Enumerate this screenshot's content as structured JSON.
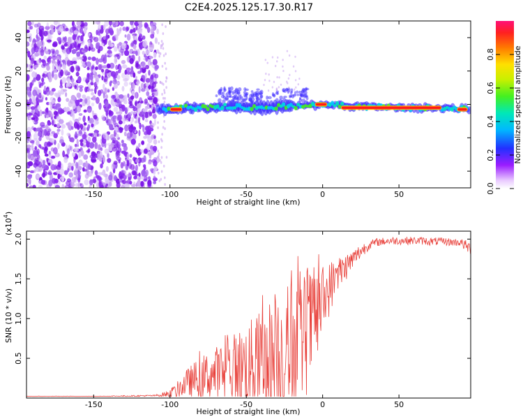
{
  "title": "C2E4.2025.125.17.30.R17",
  "colors": {
    "snr_line": "#e8403a",
    "frame": "#000000",
    "scatter_purple": "#7b16e6",
    "scatter_light": "#c9a2f2"
  },
  "chart_data": [
    {
      "type": "heatmap",
      "name": "spectrogram",
      "xlabel": "Height of straight line (km)",
      "ylabel": "Frequency (Hz)",
      "xlim": [
        -194,
        97
      ],
      "ylim": [
        -50,
        50
      ],
      "x_ticks": [
        -150,
        -100,
        -50,
        0,
        50
      ],
      "x_tick_labels": [
        "-150",
        "-100",
        "-50",
        "0",
        "50"
      ],
      "y_ticks": [
        -40,
        -20,
        0,
        20,
        40
      ],
      "y_tick_labels": [
        "-40",
        "-20",
        "0",
        "20",
        "40"
      ],
      "noise_region_x": [
        -194,
        -108
      ],
      "echo_trace": [
        {
          "x": -108,
          "y": -3
        },
        {
          "x": -100,
          "y": -3
        },
        {
          "x": -90,
          "y": -2
        },
        {
          "x": -75,
          "y": -2
        },
        {
          "x": -60,
          "y": -1
        },
        {
          "x": -45,
          "y": -2
        },
        {
          "x": -35,
          "y": -2
        },
        {
          "x": -25,
          "y": -1
        },
        {
          "x": -15,
          "y": -1
        },
        {
          "x": 0,
          "y": 0
        },
        {
          "x": 20,
          "y": -1
        },
        {
          "x": 50,
          "y": -2
        },
        {
          "x": 80,
          "y": -2
        },
        {
          "x": 97,
          "y": -3
        }
      ],
      "strong_segments": [
        {
          "x0": -100,
          "x1": -92,
          "y": -3
        },
        {
          "x0": -5,
          "x1": 3,
          "y": 0
        },
        {
          "x0": 12,
          "x1": 78,
          "y": -2
        },
        {
          "x0": 88,
          "x1": 95,
          "y": -3
        }
      ],
      "colorbar": {
        "label": "Normalized spectral amplitude",
        "range": [
          0,
          1
        ],
        "ticks": [
          0.0,
          0.2,
          0.4,
          0.6,
          0.8
        ],
        "tick_labels": [
          "0.0",
          "0.2",
          "0.4",
          "0.6",
          "0.8"
        ]
      }
    },
    {
      "type": "line",
      "name": "snr",
      "xlabel": "Height of straight line (km)",
      "ylabel": "SNR (10 * v/v)",
      "y_scale_label": "(x10^4)",
      "y_scale_base": "(x10",
      "y_scale_exp": "4",
      "y_scale_close": ")",
      "xlim": [
        -194,
        97
      ],
      "ylim": [
        0,
        2.1
      ],
      "x_ticks": [
        -150,
        -100,
        -50,
        0,
        50
      ],
      "x_tick_labels": [
        "-150",
        "-100",
        "-50",
        "0",
        "50"
      ],
      "y_ticks": [
        0.5,
        1.0,
        1.5,
        2.0
      ],
      "y_tick_labels": [
        "0.5",
        "1.0",
        "1.5",
        "2.0"
      ],
      "series": [
        {
          "name": "SNR",
          "x": [
            -194,
            -150,
            -110,
            -100,
            -95,
            -90,
            -85,
            -80,
            -75,
            -70,
            -65,
            -60,
            -55,
            -50,
            -45,
            -40,
            -35,
            -30,
            -25,
            -20,
            -15,
            -10,
            -5,
            0,
            5,
            10,
            15,
            20,
            25,
            30,
            35,
            40,
            45,
            50,
            55,
            60,
            65,
            70,
            75,
            80,
            85,
            90,
            95,
            97
          ],
          "base": [
            0.02,
            0.02,
            0.03,
            0.05,
            0.1,
            0.18,
            0.22,
            0.25,
            0.28,
            0.3,
            0.32,
            0.35,
            0.38,
            0.4,
            0.42,
            0.45,
            0.48,
            0.5,
            0.55,
            0.62,
            0.7,
            0.82,
            1.0,
            1.2,
            1.4,
            1.55,
            1.65,
            1.75,
            1.85,
            1.92,
            1.96,
            1.97,
            1.98,
            1.98,
            1.98,
            1.98,
            1.98,
            1.97,
            1.97,
            1.97,
            1.96,
            1.96,
            1.9,
            1.88
          ],
          "spread": [
            0.005,
            0.005,
            0.01,
            0.05,
            0.1,
            0.15,
            0.2,
            0.25,
            0.28,
            0.32,
            0.36,
            0.4,
            0.45,
            0.5,
            0.55,
            0.62,
            0.7,
            0.78,
            0.8,
            0.82,
            0.8,
            0.7,
            0.6,
            0.4,
            0.3,
            0.25,
            0.18,
            0.12,
            0.1,
            0.06,
            0.05,
            0.05,
            0.05,
            0.05,
            0.05,
            0.05,
            0.05,
            0.05,
            0.05,
            0.05,
            0.05,
            0.05,
            0.08,
            0.08
          ]
        }
      ]
    }
  ]
}
